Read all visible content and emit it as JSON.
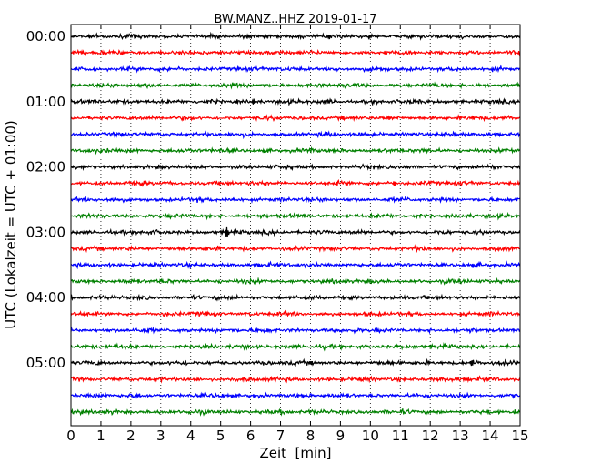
{
  "chart_data": {
    "type": "line",
    "title": "BW.MANZ..HHZ 2019-01-17",
    "xlabel": "Zeit  [min]",
    "ylabel": "UTC (Lokalzeit = UTC + 01:00)",
    "xlim": [
      0,
      15
    ],
    "x_ticks": [
      "0",
      "1",
      "2",
      "3",
      "4",
      "5",
      "6",
      "7",
      "8",
      "9",
      "10",
      "11",
      "12",
      "13",
      "14",
      "15"
    ],
    "y_ticks": [
      "00:00",
      "01:00",
      "02:00",
      "03:00",
      "04:00",
      "05:00"
    ],
    "y_ticks_every_n_traces": 4,
    "trace_minutes": 15,
    "trace_count": 24,
    "trace_colors": [
      "#000000",
      "#ff0000",
      "#0000ff",
      "#008000"
    ],
    "grid": "vertical dotted at each minute",
    "noted_spikes": [
      {
        "trace": 12,
        "minute": 5.2,
        "relative_amplitude": 4.0
      },
      {
        "trace": 4,
        "minute": 6.1,
        "relative_amplitude": 1.8
      },
      {
        "trace": 0,
        "minute": 10.0,
        "relative_amplitude": 1.6
      },
      {
        "trace": 20,
        "minute": 13.4,
        "relative_amplitude": 1.6
      },
      {
        "trace": 9,
        "minute": 10.8,
        "relative_amplitude": 1.8
      }
    ]
  }
}
